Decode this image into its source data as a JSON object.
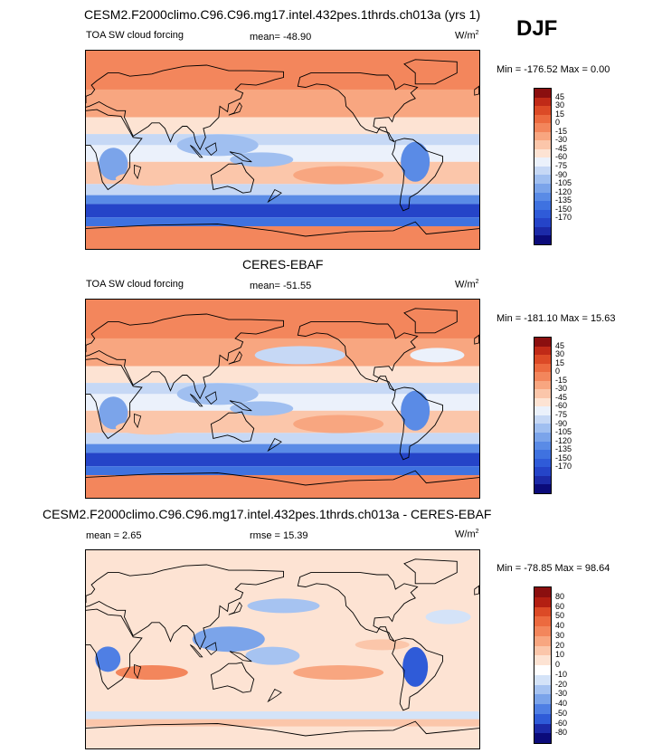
{
  "figure": {
    "main_title": "CESM2.F2000climo.C96.C96.mg17.intel.432pes.1thrds.ch013a (yrs 1)",
    "season": "DJF",
    "colors": {
      "cbar1": [
        "#0b0b7a",
        "#1c2aa8",
        "#2544c8",
        "#2f5bd8",
        "#3f72e0",
        "#5a8be6",
        "#7ba4ea",
        "#a0bff0",
        "#c6d8f5",
        "#ebf1fb",
        "#fde3d3",
        "#fbc6aa",
        "#f8a680",
        "#f3865c",
        "#ec6a3f",
        "#dc4a26",
        "#c02a17",
        "#8b0f0f"
      ],
      "cbar3": [
        "#0b0b7a",
        "#1c2aa8",
        "#2f5bd8",
        "#4f7fe4",
        "#7ba4ea",
        "#a6c3f1",
        "#d4e3f8",
        "#ffffff",
        "#fde3d3",
        "#fbc6aa",
        "#f8a680",
        "#f3865c",
        "#ec6a3f",
        "#dc4a26",
        "#b31f12",
        "#8b0f0f"
      ]
    }
  },
  "panels": [
    {
      "title": "",
      "left": "TOA SW cloud forcing",
      "center": "mean= -48.90",
      "right_unit": "W/m",
      "right_exp": "2",
      "minmax": "Min = -176.52 Max =   0.00",
      "ticks": [
        "45",
        "30",
        "15",
        "0",
        "-15",
        "-30",
        "-45",
        "-60",
        "-75",
        "-90",
        "-105",
        "-120",
        "-135",
        "-150",
        "-170"
      ]
    },
    {
      "title": "CERES-EBAF",
      "left": "TOA SW cloud forcing",
      "center": "mean= -51.55",
      "right_unit": "W/m",
      "right_exp": "2",
      "minmax": "Min = -181.10 Max =  15.63",
      "ticks": [
        "45",
        "30",
        "15",
        "0",
        "-15",
        "-30",
        "-45",
        "-60",
        "-75",
        "-90",
        "-105",
        "-120",
        "-135",
        "-150",
        "-170"
      ]
    },
    {
      "title": "CESM2.F2000climo.C96.C96.mg17.intel.432pes.1thrds.ch013a - CERES-EBAF",
      "left": "mean =   2.65",
      "center": "rmse =  15.39",
      "right_unit": "W/m",
      "right_exp": "2",
      "minmax": "Min = -78.85 Max =  98.64",
      "ticks": [
        "80",
        "60",
        "50",
        "40",
        "30",
        "20",
        "10",
        "0",
        "-10",
        "-20",
        "-30",
        "-40",
        "-50",
        "-60",
        "-80"
      ]
    }
  ],
  "chart_data": [
    {
      "type": "heatmap",
      "title": "TOA SW cloud forcing (model)",
      "units": "W/m2",
      "mean": -48.9,
      "min": -176.52,
      "max": 0.0,
      "levels": [
        45,
        30,
        15,
        0,
        -15,
        -30,
        -45,
        -60,
        -75,
        -90,
        -105,
        -120,
        -135,
        -150,
        -170
      ]
    },
    {
      "type": "heatmap",
      "title": "TOA SW cloud forcing (CERES-EBAF)",
      "units": "W/m2",
      "mean": -51.55,
      "min": -181.1,
      "max": 15.63,
      "levels": [
        45,
        30,
        15,
        0,
        -15,
        -30,
        -45,
        -60,
        -75,
        -90,
        -105,
        -120,
        -135,
        -150,
        -170
      ]
    },
    {
      "type": "heatmap",
      "title": "Model - CERES-EBAF",
      "units": "W/m2",
      "mean": 2.65,
      "rmse": 15.39,
      "min": -78.85,
      "max": 98.64,
      "levels": [
        80,
        60,
        50,
        40,
        30,
        20,
        10,
        0,
        -10,
        -20,
        -30,
        -40,
        -50,
        -60,
        -80
      ]
    }
  ]
}
